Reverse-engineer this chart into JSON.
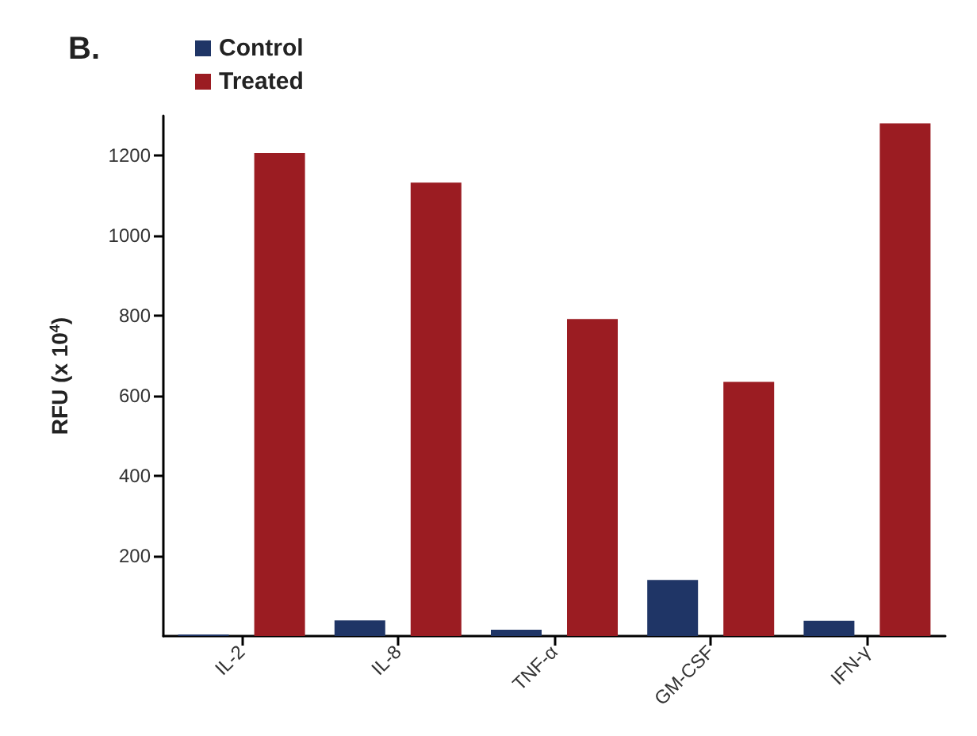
{
  "chart_data": {
    "type": "bar",
    "title": "B.",
    "ylabel": "RFU (x 10$^{4}$)",
    "categories": [
      "IL-2",
      "IL-8",
      "TNF-α",
      "GM-CSF",
      "IFN-γ"
    ],
    "series": [
      {
        "name": "Control",
        "color": "#1f3566",
        "values": [
          4,
          39,
          16,
          140,
          38
        ]
      },
      {
        "name": "Treated",
        "color": "#9b1c22",
        "values": [
          1207,
          1133,
          792,
          635,
          1281
        ]
      }
    ],
    "ylim": [
      0,
      1300
    ],
    "yticks": [
      200,
      400,
      600,
      800,
      1000,
      1200
    ],
    "grid": false,
    "legend": "top left"
  }
}
